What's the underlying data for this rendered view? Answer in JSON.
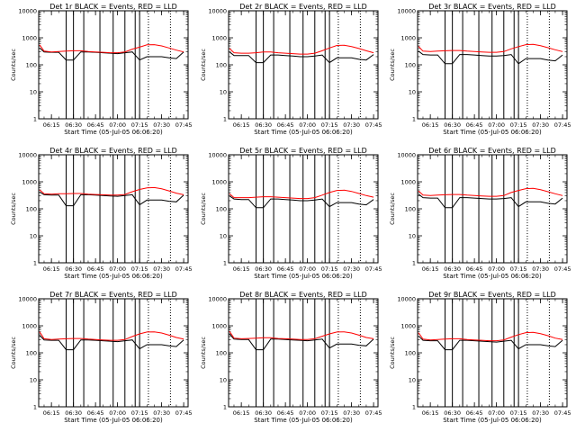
{
  "common": {
    "ylabel": "Counts/sec",
    "xlabel": "Start Time (05-Jul-05 06:06:20)",
    "x_ticks": [
      "06:15",
      "06:30",
      "06:45",
      "07:00",
      "07:15",
      "07:30",
      "07:45"
    ],
    "y_ticks": [
      "1",
      "10",
      "100",
      "1000",
      "10000"
    ],
    "colors": {
      "events": "#000000",
      "lld": "#ff0000"
    }
  },
  "chart_data": [
    {
      "type": "line",
      "title": "Det 1r BLACK = Events, RED = LLD",
      "xlabel": "Start Time (05-Jul-05 06:06:20)",
      "ylabel": "Counts/sec",
      "xlim": [
        "06:06:20",
        "07:48:00"
      ],
      "ylim": [
        1,
        10000
      ],
      "yscale": "log",
      "x": [
        "06:06",
        "06:10",
        "06:15",
        "06:20",
        "06:25",
        "06:30",
        "06:35",
        "06:40",
        "06:45",
        "06:50",
        "06:55",
        "07:00",
        "07:05",
        "07:10",
        "07:15",
        "07:20",
        "07:25",
        "07:30",
        "07:35",
        "07:40",
        "07:45"
      ],
      "series": [
        {
          "name": "Events",
          "values": [
            420,
            300,
            290,
            290,
            150,
            150,
            300,
            300,
            290,
            280,
            270,
            260,
            280,
            300,
            150,
            200,
            200,
            200,
            180,
            170,
            300
          ]
        },
        {
          "name": "LLD",
          "values": [
            550,
            320,
            300,
            310,
            320,
            330,
            330,
            310,
            300,
            290,
            280,
            280,
            300,
            380,
            450,
            550,
            560,
            500,
            420,
            350,
            300
          ]
        }
      ],
      "vlines_solid": [
        "06:25",
        "06:30",
        "06:37",
        "06:48",
        "06:57",
        "07:05",
        "07:12",
        "07:15"
      ],
      "vlines_dotted": [
        "07:21",
        "07:36"
      ]
    },
    {
      "type": "line",
      "title": "Det 2r BLACK = Events, RED = LLD",
      "xlabel": "Start Time (05-Jul-05 06:06:20)",
      "ylabel": "Counts/sec",
      "xlim": [
        "06:06:20",
        "07:48:00"
      ],
      "ylim": [
        1,
        10000
      ],
      "yscale": "log",
      "x": [
        "06:06",
        "06:10",
        "06:15",
        "06:20",
        "06:25",
        "06:30",
        "06:35",
        "06:40",
        "06:45",
        "06:50",
        "06:55",
        "07:00",
        "07:05",
        "07:10",
        "07:15",
        "07:20",
        "07:25",
        "07:30",
        "07:35",
        "07:40",
        "07:45"
      ],
      "series": [
        {
          "name": "Events",
          "values": [
            300,
            220,
            220,
            220,
            120,
            120,
            230,
            230,
            220,
            210,
            200,
            200,
            210,
            230,
            120,
            180,
            180,
            180,
            160,
            150,
            240
          ]
        },
        {
          "name": "LLD",
          "values": [
            400,
            280,
            270,
            270,
            280,
            300,
            300,
            280,
            270,
            260,
            250,
            250,
            270,
            330,
            420,
            520,
            530,
            470,
            400,
            330,
            280
          ]
        }
      ],
      "vlines_solid": [
        "06:25",
        "06:30",
        "06:37",
        "06:48",
        "06:57",
        "07:05",
        "07:12",
        "07:15"
      ],
      "vlines_dotted": [
        "07:21",
        "07:36"
      ]
    },
    {
      "type": "line",
      "title": "Det 3r BLACK = Events, RED = LLD",
      "xlabel": "Start Time (05-Jul-05 06:06:20)",
      "ylabel": "Counts/sec",
      "xlim": [
        "06:06:20",
        "07:48:00"
      ],
      "ylim": [
        1,
        10000
      ],
      "yscale": "log",
      "x": [
        "06:06",
        "06:10",
        "06:15",
        "06:20",
        "06:25",
        "06:30",
        "06:35",
        "06:40",
        "06:45",
        "06:50",
        "06:55",
        "07:00",
        "07:05",
        "07:10",
        "07:15",
        "07:20",
        "07:25",
        "07:30",
        "07:35",
        "07:40",
        "07:45"
      ],
      "series": [
        {
          "name": "Events",
          "values": [
            320,
            240,
            230,
            230,
            110,
            110,
            240,
            240,
            230,
            220,
            210,
            210,
            220,
            240,
            110,
            170,
            170,
            170,
            150,
            140,
            230
          ]
        },
        {
          "name": "LLD",
          "values": [
            480,
            320,
            310,
            320,
            330,
            340,
            340,
            320,
            310,
            300,
            290,
            290,
            310,
            390,
            470,
            560,
            570,
            510,
            430,
            360,
            310
          ]
        }
      ],
      "vlines_solid": [
        "06:25",
        "06:30",
        "06:37",
        "06:48",
        "06:57",
        "07:05",
        "07:12",
        "07:15"
      ],
      "vlines_dotted": [
        "07:21",
        "07:36"
      ]
    },
    {
      "type": "line",
      "title": "Det 4r BLACK = Events, RED = LLD",
      "xlabel": "Start Time (05-Jul-05 06:06:20)",
      "ylabel": "Counts/sec",
      "xlim": [
        "06:06:20",
        "07:48:00"
      ],
      "ylim": [
        1,
        10000
      ],
      "yscale": "log",
      "x": [
        "06:06",
        "06:10",
        "06:15",
        "06:20",
        "06:25",
        "06:30",
        "06:35",
        "06:40",
        "06:45",
        "06:50",
        "06:55",
        "07:00",
        "07:05",
        "07:10",
        "07:15",
        "07:20",
        "07:25",
        "07:30",
        "07:35",
        "07:40",
        "07:45"
      ],
      "series": [
        {
          "name": "Events",
          "values": [
            420,
            330,
            320,
            320,
            130,
            130,
            330,
            330,
            320,
            310,
            300,
            290,
            310,
            330,
            140,
            210,
            210,
            210,
            190,
            180,
            320
          ]
        },
        {
          "name": "LLD",
          "values": [
            500,
            360,
            350,
            360,
            360,
            370,
            370,
            350,
            340,
            330,
            320,
            320,
            340,
            430,
            520,
            600,
            610,
            550,
            460,
            380,
            330
          ]
        }
      ],
      "vlines_solid": [
        "06:25",
        "06:30",
        "06:37",
        "06:48",
        "06:57",
        "07:05",
        "07:12",
        "07:15"
      ],
      "vlines_dotted": [
        "07:21",
        "07:36"
      ]
    },
    {
      "type": "line",
      "title": "Det 5r BLACK = Events, RED = LLD",
      "xlabel": "Start Time (05-Jul-05 06:06:20)",
      "ylabel": "Counts/sec",
      "xlim": [
        "06:06:20",
        "07:48:00"
      ],
      "ylim": [
        1,
        10000
      ],
      "yscale": "log",
      "x": [
        "06:06",
        "06:10",
        "06:15",
        "06:20",
        "06:25",
        "06:30",
        "06:35",
        "06:40",
        "06:45",
        "06:50",
        "06:55",
        "07:00",
        "07:05",
        "07:10",
        "07:15",
        "07:20",
        "07:25",
        "07:30",
        "07:35",
        "07:40",
        "07:45"
      ],
      "series": [
        {
          "name": "Events",
          "values": [
            300,
            230,
            220,
            220,
            110,
            110,
            230,
            230,
            220,
            210,
            200,
            200,
            210,
            230,
            120,
            170,
            170,
            170,
            150,
            140,
            220
          ]
        },
        {
          "name": "LLD",
          "values": [
            360,
            260,
            260,
            260,
            270,
            280,
            280,
            270,
            260,
            250,
            240,
            240,
            260,
            320,
            400,
            480,
            490,
            440,
            370,
            310,
            270
          ]
        }
      ],
      "vlines_solid": [
        "06:25",
        "06:30",
        "06:37",
        "06:48",
        "06:57",
        "07:05",
        "07:12",
        "07:15"
      ],
      "vlines_dotted": [
        "07:21",
        "07:36"
      ]
    },
    {
      "type": "line",
      "title": "Det 6r BLACK = Events, RED = LLD",
      "xlabel": "Start Time (05-Jul-05 06:06:20)",
      "ylabel": "Counts/sec",
      "xlim": [
        "06:06:20",
        "07:48:00"
      ],
      "ylim": [
        1,
        10000
      ],
      "yscale": "log",
      "x": [
        "06:06",
        "06:10",
        "06:15",
        "06:20",
        "06:25",
        "06:30",
        "06:35",
        "06:40",
        "06:45",
        "06:50",
        "06:55",
        "07:00",
        "07:05",
        "07:10",
        "07:15",
        "07:20",
        "07:25",
        "07:30",
        "07:35",
        "07:40",
        "07:45"
      ],
      "series": [
        {
          "name": "Events",
          "values": [
            350,
            260,
            250,
            250,
            110,
            110,
            260,
            260,
            250,
            240,
            230,
            230,
            240,
            260,
            120,
            180,
            180,
            180,
            160,
            150,
            250
          ]
        },
        {
          "name": "LLD",
          "values": [
            460,
            320,
            310,
            320,
            330,
            340,
            340,
            320,
            310,
            300,
            290,
            290,
            310,
            400,
            480,
            560,
            570,
            510,
            430,
            360,
            310
          ]
        }
      ],
      "vlines_solid": [
        "06:25",
        "06:30",
        "06:37",
        "06:48",
        "06:57",
        "07:05",
        "07:12",
        "07:15"
      ],
      "vlines_dotted": [
        "07:21",
        "07:36"
      ]
    },
    {
      "type": "line",
      "title": "Det 7r BLACK = Events, RED = LLD",
      "xlabel": "Start Time (05-Jul-05 06:06:20)",
      "ylabel": "Counts/sec",
      "xlim": [
        "06:06:20",
        "07:48:00"
      ],
      "ylim": [
        1,
        10000
      ],
      "yscale": "log",
      "x": [
        "06:06",
        "06:10",
        "06:15",
        "06:20",
        "06:25",
        "06:30",
        "06:35",
        "06:40",
        "06:45",
        "06:50",
        "06:55",
        "07:00",
        "07:05",
        "07:10",
        "07:15",
        "07:20",
        "07:25",
        "07:30",
        "07:35",
        "07:40",
        "07:45"
      ],
      "series": [
        {
          "name": "Events",
          "values": [
            450,
            300,
            290,
            290,
            130,
            130,
            300,
            300,
            290,
            280,
            270,
            260,
            280,
            300,
            140,
            200,
            200,
            200,
            180,
            170,
            300
          ]
        },
        {
          "name": "LLD",
          "values": [
            600,
            330,
            310,
            320,
            330,
            340,
            340,
            320,
            310,
            300,
            290,
            290,
            310,
            400,
            500,
            590,
            600,
            540,
            450,
            370,
            320
          ]
        }
      ],
      "vlines_solid": [
        "06:25",
        "06:30",
        "06:37",
        "06:48",
        "06:57",
        "07:05",
        "07:12",
        "07:15"
      ],
      "vlines_dotted": [
        "07:21",
        "07:36"
      ]
    },
    {
      "type": "line",
      "title": "Det 8r BLACK = Events, RED = LLD",
      "xlabel": "Start Time (05-Jul-05 06:06:20)",
      "ylabel": "Counts/sec",
      "xlim": [
        "06:06:20",
        "07:48:00"
      ],
      "ylim": [
        1,
        10000
      ],
      "yscale": "log",
      "x": [
        "06:06",
        "06:10",
        "06:15",
        "06:20",
        "06:25",
        "06:30",
        "06:35",
        "06:40",
        "06:45",
        "06:50",
        "06:55",
        "07:00",
        "07:05",
        "07:10",
        "07:15",
        "07:20",
        "07:25",
        "07:30",
        "07:35",
        "07:40",
        "07:45"
      ],
      "series": [
        {
          "name": "Events",
          "values": [
            500,
            320,
            310,
            310,
            130,
            130,
            320,
            320,
            310,
            300,
            290,
            280,
            300,
            320,
            150,
            210,
            210,
            210,
            190,
            180,
            320
          ]
        },
        {
          "name": "LLD",
          "values": [
            620,
            350,
            330,
            340,
            350,
            360,
            360,
            340,
            330,
            320,
            310,
            310,
            330,
            410,
            500,
            590,
            600,
            540,
            450,
            370,
            330
          ]
        }
      ],
      "vlines_solid": [
        "06:25",
        "06:30",
        "06:37",
        "06:48",
        "06:57",
        "07:05",
        "07:12",
        "07:15"
      ],
      "vlines_dotted": [
        "07:21",
        "07:36"
      ]
    },
    {
      "type": "line",
      "title": "Det 9r BLACK = Events, RED = LLD",
      "xlabel": "Start Time (05-Jul-05 06:06:20)",
      "ylabel": "Counts/sec",
      "xlim": [
        "06:06:20",
        "07:48:00"
      ],
      "ylim": [
        1,
        10000
      ],
      "yscale": "log",
      "x": [
        "06:06",
        "06:10",
        "06:15",
        "06:20",
        "06:25",
        "06:30",
        "06:35",
        "06:40",
        "06:45",
        "06:50",
        "06:55",
        "07:00",
        "07:05",
        "07:10",
        "07:15",
        "07:20",
        "07:25",
        "07:30",
        "07:35",
        "07:40",
        "07:45"
      ],
      "series": [
        {
          "name": "Events",
          "values": [
            420,
            290,
            280,
            280,
            130,
            130,
            290,
            290,
            280,
            270,
            260,
            250,
            270,
            290,
            140,
            200,
            200,
            200,
            180,
            170,
            290
          ]
        },
        {
          "name": "LLD",
          "values": [
            560,
            320,
            300,
            310,
            320,
            330,
            330,
            310,
            300,
            290,
            280,
            280,
            300,
            380,
            470,
            560,
            570,
            510,
            430,
            350,
            310
          ]
        }
      ],
      "vlines_solid": [
        "06:25",
        "06:30",
        "06:37",
        "06:48",
        "06:57",
        "07:05",
        "07:12",
        "07:15"
      ],
      "vlines_dotted": [
        "07:21",
        "07:36"
      ]
    }
  ]
}
